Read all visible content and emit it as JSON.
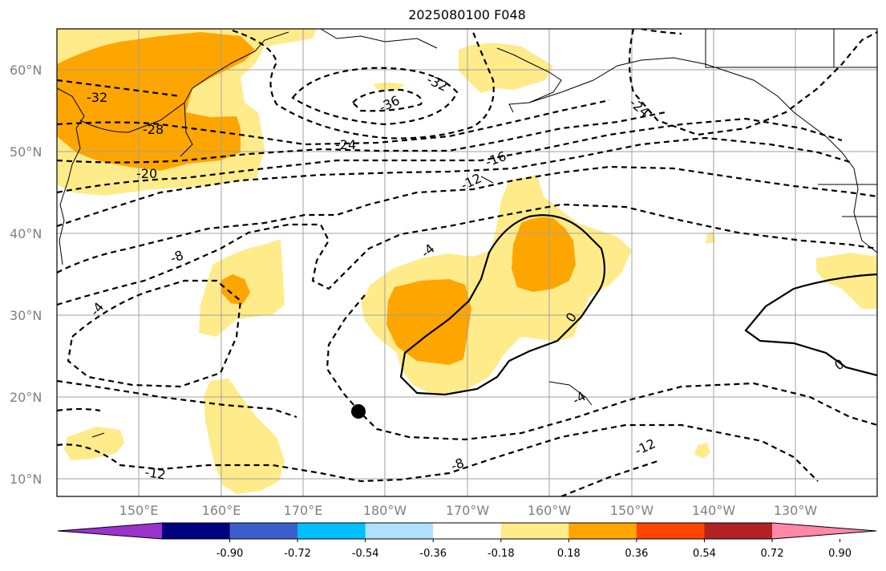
{
  "map": {
    "title": "2025080100 F048",
    "lat_labels": [
      "60°N",
      "50°N",
      "40°N",
      "30°N",
      "20°N",
      "10°N"
    ],
    "lon_labels": [
      "150°E",
      "160°E",
      "170°E",
      "180°W",
      "170°W",
      "160°W",
      "150°W",
      "140°W",
      "130°W"
    ],
    "contour_labels": [
      "-32",
      "-36",
      "-32",
      "-28",
      "-24",
      "-24",
      "-20",
      "-16",
      "-12",
      "-8",
      "-4",
      "-4",
      "0",
      "0",
      "-4",
      "-8",
      "-12",
      "-12"
    ],
    "colorbar": {
      "tick_labels": [
        "-0.90",
        "-0.72",
        "-0.54",
        "-0.36",
        "-0.18",
        "0.18",
        "0.36",
        "0.54",
        "0.72",
        "0.90"
      ],
      "colors": [
        "#9933cc",
        "#000080",
        "#3a5fcd",
        "#00bfff",
        "#b0e2ff",
        "#ffffff",
        "#ffeb8a",
        "#ffa500",
        "#ff4500",
        "#b22222",
        "#ff88aa"
      ]
    },
    "shading_colors": {
      "light": "#ffeb8a",
      "orange": "#ffa500"
    },
    "marker": "typhoon-position-dot"
  }
}
